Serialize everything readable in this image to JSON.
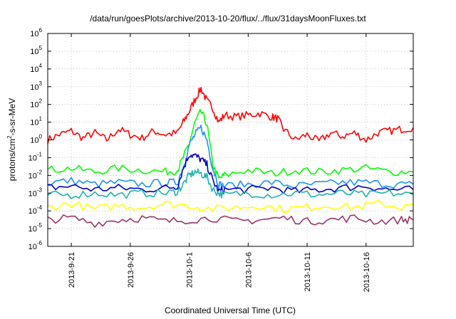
{
  "chart_data": {
    "type": "line",
    "title": "/data/run/goesPlots/archive/2013-10-20/flux/../flux/31daysMoonFluxes.txt",
    "xlabel": "Coordinated Universal Time (UTC)",
    "ylabel": "protons/cm²-s-sr-MeV",
    "ylabel_main": "protons/cm",
    "ylabel_sup": "2",
    "ylabel_rest": "-s-sr-MeV",
    "yscale": "log",
    "ylim_exp": [
      -6,
      6
    ],
    "xlim_day": [
      19.0,
      50.0
    ],
    "grid": true,
    "yticks": [
      {
        "base": "10",
        "exp": "-6"
      },
      {
        "base": "10",
        "exp": "-5"
      },
      {
        "base": "10",
        "exp": "-4"
      },
      {
        "base": "10",
        "exp": "-3"
      },
      {
        "base": "10",
        "exp": "-2"
      },
      {
        "base": "10",
        "exp": "-1"
      },
      {
        "base": "10",
        "exp": "0"
      },
      {
        "base": "10",
        "exp": "1"
      },
      {
        "base": "10",
        "exp": "2"
      },
      {
        "base": "10",
        "exp": "3"
      },
      {
        "base": "10",
        "exp": "4"
      },
      {
        "base": "10",
        "exp": "5"
      },
      {
        "base": "10",
        "exp": "6"
      }
    ],
    "xticks": [
      {
        "label": "2013-9-21",
        "day": 21
      },
      {
        "label": "2013-9-26",
        "day": 26
      },
      {
        "label": "2013-10-1",
        "day": 31
      },
      {
        "label": "2013-10-6",
        "day": 36
      },
      {
        "label": "2013-10-11",
        "day": 41
      },
      {
        "label": "2013-10-16",
        "day": 46
      }
    ],
    "series": [
      {
        "color": "#ff0000",
        "x": [
          19,
          20,
          21,
          22,
          23,
          24,
          25,
          26,
          27,
          28,
          29,
          30,
          30.5,
          31,
          31.5,
          32,
          32.5,
          33,
          33.5,
          34,
          35,
          36,
          37,
          38,
          38.5,
          39,
          40,
          41,
          42,
          43,
          44,
          45,
          46,
          47,
          48,
          49,
          50
        ],
        "y_exp": [
          0.0,
          0.3,
          0.5,
          0.1,
          0.4,
          0.0,
          0.6,
          0.3,
          0.1,
          0.5,
          0.3,
          0.4,
          1.0,
          1.6,
          2.3,
          2.9,
          2.2,
          1.8,
          1.0,
          1.4,
          1.3,
          1.4,
          1.5,
          1.3,
          1.2,
          0.6,
          0.0,
          0.3,
          -0.1,
          0.4,
          0.2,
          0.4,
          0.0,
          0.4,
          0.5,
          0.6,
          0.7
        ]
      },
      {
        "color": "#00ff00",
        "x": [
          19,
          21,
          23,
          25,
          27,
          29,
          30,
          30.5,
          31,
          31.5,
          32,
          32.5,
          33,
          33.5,
          34,
          36,
          38,
          40,
          42,
          44,
          46,
          48,
          50
        ],
        "y_exp": [
          -1.7,
          -1.6,
          -1.8,
          -1.6,
          -1.7,
          -1.8,
          -1.7,
          -1.0,
          -0.2,
          1.0,
          1.6,
          0.9,
          -1.4,
          -2.2,
          -2.0,
          -1.7,
          -1.9,
          -1.7,
          -1.8,
          -1.7,
          -1.6,
          -1.8,
          -1.8
        ]
      },
      {
        "color": "#1e90ff",
        "x": [
          19,
          21,
          23,
          25,
          27,
          29,
          30,
          30.5,
          31,
          31.5,
          32,
          32.5,
          33,
          33.5,
          34,
          36,
          38,
          40,
          42,
          44,
          46,
          48,
          50
        ],
        "y_exp": [
          -2.4,
          -2.3,
          -2.5,
          -2.4,
          -2.5,
          -2.4,
          -2.4,
          -1.5,
          -0.3,
          0.3,
          0.7,
          0.0,
          -1.6,
          -2.5,
          -2.6,
          -2.5,
          -2.4,
          -2.6,
          -2.5,
          -2.4,
          -2.4,
          -2.5,
          -2.5
        ]
      },
      {
        "color": "#0000cd",
        "x": [
          19,
          21,
          23,
          25,
          27,
          29,
          30,
          30.5,
          31,
          31.5,
          32,
          32.5,
          33,
          33.5,
          34,
          36,
          38,
          40,
          42,
          44,
          46,
          48,
          50
        ],
        "y_exp": [
          -2.7,
          -2.6,
          -2.8,
          -2.7,
          -2.8,
          -2.7,
          -2.6,
          -1.6,
          -0.8,
          -0.9,
          -1.1,
          -1.4,
          -2.3,
          -2.9,
          -2.8,
          -2.8,
          -2.7,
          -2.9,
          -2.8,
          -2.7,
          -2.6,
          -2.8,
          -2.8
        ]
      },
      {
        "color": "#20b2aa",
        "x": [
          19,
          21,
          23,
          25,
          27,
          29,
          30,
          30.5,
          31,
          31.5,
          32,
          32.5,
          33,
          33.5,
          34,
          36,
          38,
          40,
          42,
          44,
          46,
          48,
          50
        ],
        "y_exp": [
          -3.1,
          -3.1,
          -3.0,
          -3.1,
          -3.0,
          -3.0,
          -2.9,
          -2.5,
          -2.0,
          -1.8,
          -1.9,
          -2.1,
          -2.8,
          -3.0,
          -3.1,
          -3.0,
          -3.1,
          -3.0,
          -3.1,
          -3.0,
          -3.1,
          -3.0,
          -3.1
        ]
      },
      {
        "color": "#ffff00",
        "x": [
          19,
          21,
          23,
          25,
          27,
          29,
          31,
          33,
          35,
          37,
          39,
          41,
          43,
          45,
          47,
          49,
          50
        ],
        "y_exp": [
          -3.8,
          -3.6,
          -3.9,
          -3.7,
          -3.8,
          -3.6,
          -3.7,
          -3.9,
          -3.8,
          -3.7,
          -3.9,
          -3.8,
          -3.7,
          -3.8,
          -3.6,
          -3.8,
          -3.7
        ]
      },
      {
        "color": "#993366",
        "x": [
          19,
          21,
          23,
          25,
          27,
          29,
          31,
          33,
          35,
          37,
          39,
          41,
          43,
          45,
          47,
          49,
          50
        ],
        "y_exp": [
          -4.5,
          -4.4,
          -4.7,
          -4.5,
          -4.4,
          -4.6,
          -4.5,
          -4.4,
          -4.6,
          -4.5,
          -4.4,
          -4.6,
          -4.5,
          -4.4,
          -4.6,
          -4.5,
          -4.5
        ]
      }
    ]
  }
}
